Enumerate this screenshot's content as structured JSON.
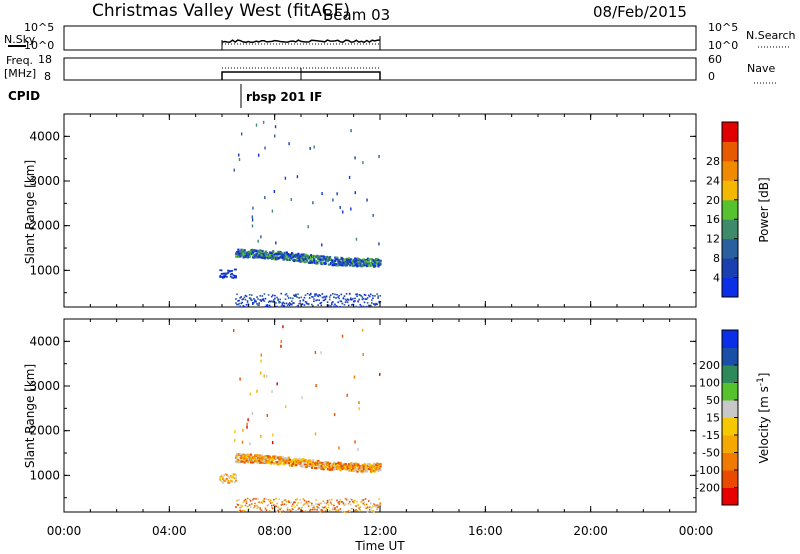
{
  "header": {
    "title": "Christmas Valley West (fitACF)",
    "beam": "Beam 03",
    "date": "08/Feb/2015"
  },
  "panels": {
    "nsky": {
      "left_label": "N.Sky",
      "left_ticks": [
        "10^5",
        "10^0"
      ],
      "right_ticks": [
        "10^5",
        "10^0"
      ],
      "right_label": "N.Search"
    },
    "freq": {
      "left_label_1": "Freq.",
      "left_label_2": "[MHz]",
      "left_ticks": [
        "18",
        "8"
      ],
      "right_ticks": [
        "60",
        "0"
      ],
      "right_label": "Nave"
    },
    "cpid": {
      "label": "CPID",
      "program": "rbsp 201 IF"
    }
  },
  "colors": {
    "power": [
      "#0a2fe6",
      "#1a3fb0",
      "#2a5fa0",
      "#3f8a6a",
      "#55c22e",
      "#f5b800",
      "#f08a00",
      "#e85a00",
      "#e00000"
    ],
    "velocity": [
      "#e60000",
      "#ea4a00",
      "#f07a00",
      "#f5a800",
      "#f5c800",
      "#c8c8c8",
      "#55c22e",
      "#2f8a5a",
      "#1a4fa8",
      "#0a2fe6"
    ]
  },
  "chart_data": [
    {
      "type": "heatmap",
      "panel": "power",
      "ylabel": "Slant Range [km]",
      "ylim": [
        180,
        4500
      ],
      "yticks": [
        "1000",
        "2000",
        "3000",
        "4000"
      ],
      "xlim": [
        0,
        24
      ],
      "colorbar_label": "Power [dB]",
      "colorbar_ticks": [
        "4",
        "8",
        "12",
        "16",
        "20",
        "24",
        "28"
      ],
      "data_time_range_ut": [
        6.0,
        12.0
      ],
      "dominant_echo_range_km": [
        1200,
        1500
      ]
    },
    {
      "type": "heatmap",
      "panel": "velocity",
      "ylabel": "Slant Range [km]",
      "ylim": [
        180,
        4500
      ],
      "yticks": [
        "1000",
        "2000",
        "3000",
        "4000"
      ],
      "xlim": [
        0,
        24
      ],
      "colorbar_label": "Velocity [m s-1]",
      "colorbar_label_parts": [
        "Velocity [m s",
        "-1",
        "]"
      ],
      "colorbar_ticks": [
        "200",
        "100",
        "50",
        "15",
        "-15",
        "-50",
        "-100",
        "-200"
      ],
      "data_time_range_ut": [
        6.0,
        12.0
      ],
      "dominant_echo_range_km": [
        1200,
        1500
      ]
    }
  ],
  "x_axis": {
    "label": "Time UT",
    "ticks": [
      "00:00",
      "04:00",
      "08:00",
      "12:00",
      "16:00",
      "20:00",
      "00:00"
    ]
  }
}
